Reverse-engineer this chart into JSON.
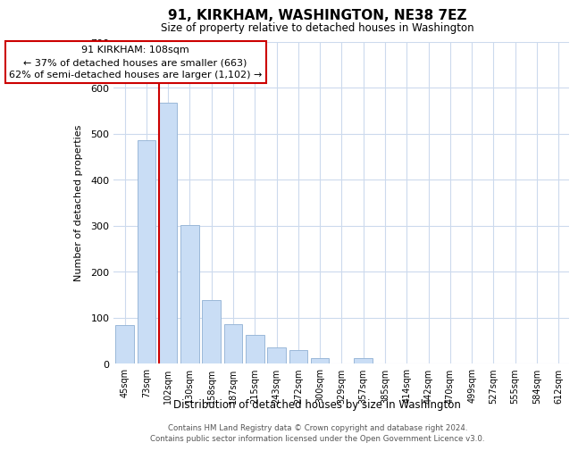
{
  "title": "91, KIRKHAM, WASHINGTON, NE38 7EZ",
  "subtitle": "Size of property relative to detached houses in Washington",
  "xlabel": "Distribution of detached houses by size in Washington",
  "ylabel": "Number of detached properties",
  "categories": [
    "45sqm",
    "73sqm",
    "102sqm",
    "130sqm",
    "158sqm",
    "187sqm",
    "215sqm",
    "243sqm",
    "272sqm",
    "300sqm",
    "329sqm",
    "357sqm",
    "385sqm",
    "414sqm",
    "442sqm",
    "470sqm",
    "499sqm",
    "527sqm",
    "555sqm",
    "584sqm",
    "612sqm"
  ],
  "values": [
    83,
    487,
    567,
    302,
    139,
    85,
    63,
    35,
    30,
    12,
    0,
    12,
    0,
    0,
    0,
    0,
    0,
    0,
    0,
    0,
    0
  ],
  "bar_color": "#c9ddf5",
  "bar_edge_color": "#9ab8d8",
  "redline_bar_index": 2,
  "annotation_line1": "91 KIRKHAM: 108sqm",
  "annotation_line2": "← 37% of detached houses are smaller (663)",
  "annotation_line3": "62% of semi-detached houses are larger (1,102) →",
  "annotation_box_edge": "#cc0000",
  "redline_color": "#cc0000",
  "ylim": [
    0,
    700
  ],
  "yticks": [
    0,
    100,
    200,
    300,
    400,
    500,
    600,
    700
  ],
  "footer1": "Contains HM Land Registry data © Crown copyright and database right 2024.",
  "footer2": "Contains public sector information licensed under the Open Government Licence v3.0.",
  "bg_color": "#ffffff",
  "grid_color": "#ccdaed"
}
